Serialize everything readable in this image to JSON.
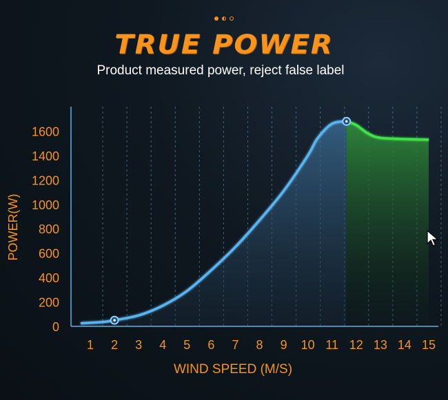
{
  "header": {
    "pager_dots": [
      "filled",
      "half",
      "empty"
    ],
    "title": "TRUE POWER",
    "subtitle": "Product measured power, reject false label"
  },
  "colors": {
    "accent": "#f7941d",
    "curve": "#5ab4f0",
    "curve_highlight": "#43e34a",
    "axis_text": "#f7941d"
  },
  "chart_data": {
    "type": "area",
    "xlabel": "WIND SPEED (M/S)",
    "ylabel": "POWER(W)",
    "x_ticks": [
      1,
      2,
      3,
      4,
      5,
      6,
      7,
      8,
      9,
      10,
      11,
      12,
      13,
      14,
      15
    ],
    "y_ticks": [
      0,
      200,
      400,
      600,
      800,
      1000,
      1200,
      1400,
      1600
    ],
    "xlim": [
      0.2,
      15.4
    ],
    "ylim": [
      0,
      1800
    ],
    "grid": "vertical dashed",
    "series": [
      {
        "x": [
          0.6,
          1.5,
          2.0,
          3.0,
          4.0,
          5.0,
          6.0,
          7.0,
          8.0,
          9.0,
          10.0,
          10.4,
          11.0,
          11.6
        ],
        "values": [
          25,
          35,
          50,
          90,
          170,
          290,
          460,
          650,
          870,
          1110,
          1400,
          1540,
          1660,
          1680
        ]
      },
      {
        "x": [
          11.6,
          12.0,
          12.5,
          13.0,
          14.0,
          15.0
        ],
        "values": [
          1680,
          1650,
          1580,
          1545,
          1535,
          1530
        ]
      }
    ],
    "markers": [
      {
        "x": 2.0,
        "y": 50
      },
      {
        "x": 11.6,
        "y": 1680
      }
    ]
  }
}
